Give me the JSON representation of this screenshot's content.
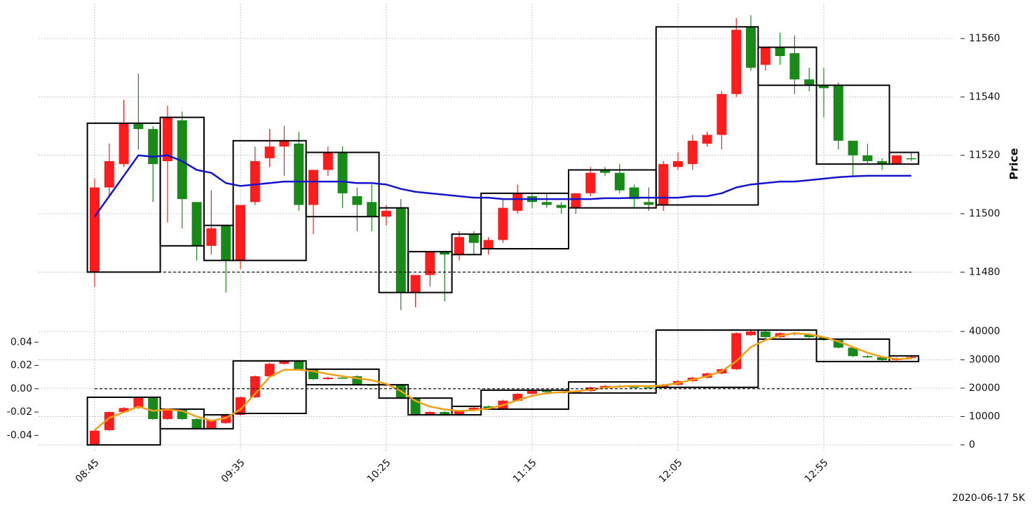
{
  "footer": "2020-06-17 5K",
  "chart_data": [
    {
      "type": "candlestick",
      "ylabel": "Price",
      "y_axis_side": "right",
      "grid": "y",
      "categories": [
        "08:45",
        null,
        null,
        null,
        null,
        null,
        null,
        null,
        null,
        null,
        "09:35",
        null,
        null,
        null,
        null,
        null,
        null,
        null,
        null,
        null,
        "10:25",
        null,
        null,
        null,
        null,
        null,
        null,
        null,
        null,
        null,
        "11:15",
        null,
        null,
        null,
        null,
        null,
        null,
        null,
        null,
        null,
        "12:05",
        null,
        null,
        null,
        null,
        null,
        null,
        null,
        null,
        null,
        "12:55",
        null,
        null,
        null,
        null,
        null,
        null
      ],
      "ylim": [
        11464,
        11572
      ],
      "yticks": [
        11480,
        11500,
        11520,
        11540,
        11560
      ],
      "up_color": "#ff1c1c",
      "down_color": "#178a17",
      "candles": {
        "axis": "y",
        "open": [
          11480,
          11509,
          11517,
          11531,
          11529,
          11518,
          11532,
          11504,
          11489,
          11496,
          11484,
          11504,
          11519,
          11523,
          11524,
          11503,
          11515,
          11521,
          11506,
          11504,
          11499,
          11502,
          11473,
          11479,
          11487,
          11486,
          11493,
          11488,
          11491,
          11501,
          11506,
          11504,
          11503,
          11502,
          11507,
          11515,
          11514,
          11509,
          11504,
          11503,
          11516,
          11517,
          11524,
          11527,
          11541,
          11564,
          11551,
          11557,
          11555,
          11546,
          11544,
          11544,
          11525,
          11520,
          11518,
          11517,
          11519
        ],
        "high": [
          11512,
          11524,
          11539,
          11548,
          11530,
          11537,
          11535,
          11504,
          11508,
          11496,
          11503,
          11523,
          11529,
          11530,
          11528,
          11515,
          11523,
          11523,
          11509,
          11510,
          11503,
          11505,
          11479,
          11487,
          11487,
          11494,
          11494,
          11492,
          11505,
          11510,
          11507,
          11507,
          11504,
          11507,
          11516,
          11516,
          11517,
          11510,
          11509,
          11518,
          11521,
          11527,
          11528,
          11542,
          11567,
          11568,
          11557,
          11562,
          11561,
          11550,
          11550,
          11545,
          11525,
          11524,
          11519,
          11520,
          11521
        ],
        "low": [
          11475,
          11506,
          11516,
          11522,
          11504,
          11497,
          11495,
          11484,
          11486,
          11473,
          11481,
          11503,
          11516,
          11513,
          11501,
          11493,
          11513,
          11502,
          11494,
          11494,
          11496,
          11467,
          11468,
          11475,
          11470,
          11484,
          11486,
          11486,
          11490,
          11500,
          11502,
          11502,
          11500,
          11500,
          11506,
          11513,
          11507,
          11502,
          11501,
          11501,
          11515,
          11515,
          11523,
          11522,
          11540,
          11549,
          11549,
          11551,
          11541,
          11542,
          11533,
          11522,
          11513,
          11517,
          11515,
          11517,
          11518
        ],
        "close": [
          11509,
          11518,
          11531,
          11529,
          11517,
          11533,
          11505,
          11489,
          11495,
          11484,
          11503,
          11518,
          11523,
          11525,
          11503,
          11515,
          11521,
          11507,
          11503,
          11499,
          11501,
          11473,
          11479,
          11487,
          11486,
          11492,
          11490,
          11491,
          11502,
          11507,
          11504,
          11503,
          11502,
          11507,
          11514,
          11514,
          11508,
          11505,
          11503,
          11517,
          11518,
          11525,
          11527,
          11541,
          11563,
          11550,
          11557,
          11554,
          11546,
          11544,
          11543,
          11525,
          11520,
          11518,
          11517,
          11520,
          11519
        ]
      },
      "boxes": {
        "axis": "y",
        "color": "#000000",
        "items": [
          {
            "start": 0,
            "end": 4,
            "low": 11480,
            "high": 11531
          },
          {
            "start": 5,
            "end": 7,
            "low": 11489,
            "high": 11533
          },
          {
            "start": 8,
            "end": 9,
            "low": 11484,
            "high": 11496
          },
          {
            "start": 10,
            "end": 14,
            "low": 11484,
            "high": 11525
          },
          {
            "start": 15,
            "end": 19,
            "low": 11499,
            "high": 11521
          },
          {
            "start": 20,
            "end": 21,
            "low": 11473,
            "high": 11502
          },
          {
            "start": 22,
            "end": 24,
            "low": 11473,
            "high": 11487
          },
          {
            "start": 25,
            "end": 26,
            "low": 11486,
            "high": 11493
          },
          {
            "start": 27,
            "end": 32,
            "low": 11488,
            "high": 11507
          },
          {
            "start": 33,
            "end": 38,
            "low": 11502,
            "high": 11515
          },
          {
            "start": 39,
            "end": 45,
            "low": 11503,
            "high": 11564
          },
          {
            "start": 46,
            "end": 49,
            "low": 11544,
            "high": 11557
          },
          {
            "start": 50,
            "end": 54,
            "low": 11517,
            "high": 11544
          },
          {
            "start": 55,
            "end": 56,
            "low": 11517,
            "high": 11521
          }
        ]
      },
      "lines": [
        {
          "axis": "y",
          "color": "#1414cc",
          "values": [
            11499,
            11506,
            11513,
            11520,
            11519.5,
            11520,
            11518,
            11515,
            11514,
            11510.5,
            11509.5,
            11510,
            11510.5,
            11511,
            11511,
            11511,
            11511,
            11511,
            11510.5,
            11510.5,
            11510,
            11508.5,
            11507.5,
            11507,
            11506.5,
            11506,
            11505.5,
            11505.5,
            11505,
            11505,
            11505,
            11505,
            11505,
            11505,
            11505,
            11505.3,
            11505.3,
            11505.5,
            11505.5,
            11505.5,
            11505.5,
            11506,
            11506,
            11507,
            11509,
            11510,
            11510.5,
            11511,
            11511,
            11511.5,
            11512,
            11512.5,
            11512.8,
            11513,
            11513,
            11513,
            11513
          ]
        }
      ],
      "hline": {
        "value": 11480,
        "axis": "y",
        "color": "#000000"
      }
    },
    {
      "type": "candlestick",
      "y_axis_side": "left",
      "grid": "y2",
      "ylim": [
        -0.053,
        0.054
      ],
      "yticks": [
        -0.04,
        -0.02,
        {
          "value": 0,
          "label": "0.00"
        },
        0.02,
        0.04
      ],
      "y2lim": [
        -2000,
        42000
      ],
      "y2ticks": [
        0,
        10000,
        20000,
        30000,
        40000
      ],
      "up_color": "#ff1c1c",
      "down_color": "#178a17",
      "candles": {
        "axis": "y2",
        "open": [
          200,
          5200,
          11600,
          13000,
          16800,
          9100,
          12600,
          9100,
          5700,
          7700,
          10600,
          16800,
          24200,
          28600,
          29600,
          26700,
          23200,
          23700,
          24200,
          21200,
          21000,
          21200,
          16500,
          10600,
          11600,
          10600,
          12100,
          13600,
          12600,
          15600,
          18000,
          19000,
          18600,
          18600,
          19000,
          20300,
          20800,
          20500,
          20300,
          20300,
          21200,
          22500,
          23700,
          25200,
          26700,
          38700,
          40000,
          38000,
          39400,
          39000,
          38000,
          37000,
          34300,
          31300,
          30900,
          29900,
          30600
        ],
        "high": [
          5200,
          11800,
          13300,
          17100,
          17100,
          12900,
          12900,
          9400,
          8900,
          10900,
          17100,
          24500,
          28900,
          29900,
          29900,
          27000,
          24000,
          24000,
          24500,
          21500,
          21600,
          21500,
          16800,
          11900,
          11900,
          12400,
          13400,
          13900,
          15900,
          18300,
          19300,
          19300,
          18900,
          19300,
          20600,
          21100,
          21100,
          20800,
          20600,
          21500,
          22800,
          24000,
          25500,
          27000,
          39700,
          40300,
          40300,
          39700,
          39700,
          39300,
          38300,
          37300,
          34600,
          31600,
          31200,
          30900,
          31300
        ],
        "low": [
          0,
          4900,
          11300,
          12700,
          8800,
          8800,
          8800,
          5400,
          5400,
          7400,
          10300,
          16500,
          23900,
          28300,
          26400,
          22900,
          22900,
          23400,
          20900,
          20900,
          20700,
          16200,
          10300,
          10300,
          10300,
          10300,
          11800,
          12300,
          12300,
          15300,
          17700,
          18300,
          18300,
          18300,
          18700,
          20000,
          20200,
          20000,
          20000,
          20000,
          20900,
          22200,
          23400,
          24900,
          26400,
          38400,
          37700,
          37700,
          38700,
          37700,
          36700,
          34000,
          31000,
          30600,
          29600,
          29600,
          30300
        ],
        "close": [
          5000,
          11600,
          13000,
          16800,
          9100,
          12600,
          9100,
          5700,
          8600,
          10600,
          16800,
          24200,
          28600,
          29600,
          26700,
          23200,
          23700,
          23700,
          21200,
          21200,
          21300,
          16500,
          10600,
          11600,
          10600,
          12100,
          13100,
          12600,
          15600,
          18000,
          19000,
          18600,
          18600,
          19000,
          20300,
          20800,
          20500,
          20300,
          20300,
          21200,
          22500,
          23700,
          25200,
          26700,
          39400,
          40000,
          38000,
          39400,
          39000,
          38000,
          37000,
          34300,
          31300,
          30900,
          29900,
          30600,
          31000
        ]
      },
      "boxes": {
        "axis": "y2",
        "color": "#000000",
        "items": [
          {
            "start": 0,
            "end": 4,
            "low": 0,
            "high": 16800
          },
          {
            "start": 5,
            "end": 7,
            "low": 5700,
            "high": 12600
          },
          {
            "start": 8,
            "end": 9,
            "low": 5700,
            "high": 10600
          },
          {
            "start": 10,
            "end": 14,
            "low": 11100,
            "high": 29600
          },
          {
            "start": 15,
            "end": 19,
            "low": 21200,
            "high": 26700
          },
          {
            "start": 20,
            "end": 21,
            "low": 16500,
            "high": 21200
          },
          {
            "start": 22,
            "end": 24,
            "low": 10600,
            "high": 16500
          },
          {
            "start": 25,
            "end": 26,
            "low": 10600,
            "high": 13600
          },
          {
            "start": 27,
            "end": 32,
            "low": 12600,
            "high": 19300
          },
          {
            "start": 33,
            "end": 38,
            "low": 18300,
            "high": 22200
          },
          {
            "start": 39,
            "end": 45,
            "low": 20300,
            "high": 40500
          },
          {
            "start": 46,
            "end": 49,
            "low": 37300,
            "high": 40500
          },
          {
            "start": 50,
            "end": 54,
            "low": 29400,
            "high": 37300
          },
          {
            "start": 55,
            "end": 56,
            "low": 29400,
            "high": 31400
          }
        ]
      },
      "lines": [
        {
          "axis": "y2",
          "color": "#f0a018",
          "values": [
            5200,
            9500,
            11500,
            13500,
            12000,
            12500,
            12000,
            10000,
            8500,
            9500,
            12500,
            18000,
            24000,
            26500,
            26500,
            26000,
            25000,
            24200,
            23500,
            22800,
            21500,
            19000,
            15500,
            13500,
            12500,
            12000,
            12200,
            12800,
            14000,
            15800,
            17300,
            18200,
            18600,
            18900,
            19500,
            20200,
            20600,
            20800,
            20700,
            21000,
            21800,
            23000,
            24200,
            26000,
            29500,
            34500,
            37000,
            38500,
            39400,
            39000,
            38000,
            36500,
            34500,
            32500,
            31000,
            30300,
            30500
          ]
        }
      ],
      "hline": {
        "value": 0,
        "axis": "y",
        "color": "#000000"
      }
    }
  ]
}
